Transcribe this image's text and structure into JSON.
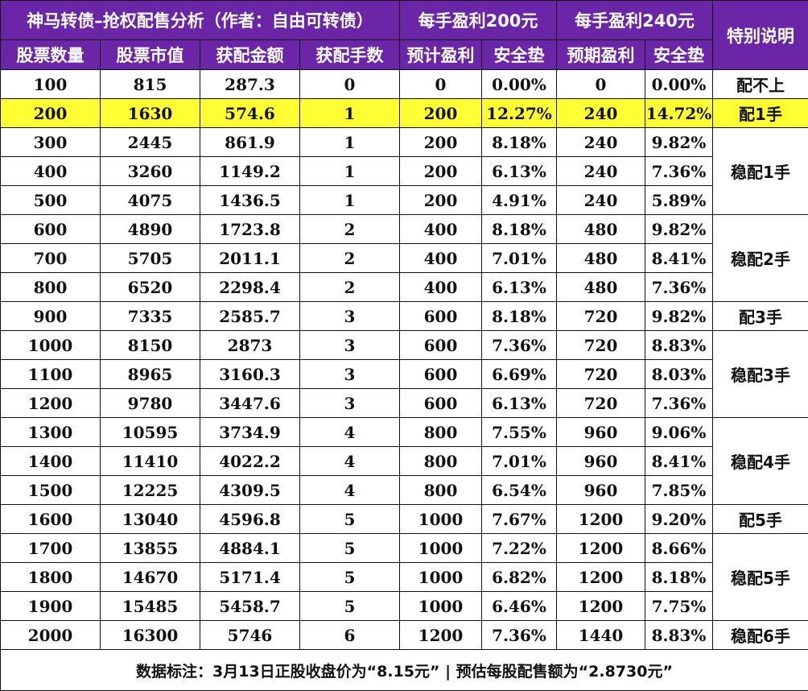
{
  "header": {
    "title": "神马转债–抢权配售分析（作者：自由可转债）",
    "group1": "每手盈利200元",
    "group2": "每手盈利240元",
    "special": "特别说明",
    "columns": [
      "股票数量",
      "股票市值",
      "获配金额",
      "获配手数",
      "预计盈利",
      "安全垫",
      "预期盈利",
      "安全垫"
    ]
  },
  "rows": [
    [
      "100",
      "815",
      "287.3",
      "0",
      "0",
      "0.00%",
      "0",
      "0.00%"
    ],
    [
      "200",
      "1630",
      "574.6",
      "1",
      "200",
      "12.27%",
      "240",
      "14.72%"
    ],
    [
      "300",
      "2445",
      "861.9",
      "1",
      "200",
      "8.18%",
      "240",
      "9.82%"
    ],
    [
      "400",
      "3260",
      "1149.2",
      "1",
      "200",
      "6.13%",
      "240",
      "7.36%"
    ],
    [
      "500",
      "4075",
      "1436.5",
      "1",
      "200",
      "4.91%",
      "240",
      "5.89%"
    ],
    [
      "600",
      "4890",
      "1723.8",
      "2",
      "400",
      "8.18%",
      "480",
      "9.82%"
    ],
    [
      "700",
      "5705",
      "2011.1",
      "2",
      "400",
      "7.01%",
      "480",
      "8.41%"
    ],
    [
      "800",
      "6520",
      "2298.4",
      "2",
      "400",
      "6.13%",
      "480",
      "7.36%"
    ],
    [
      "900",
      "7335",
      "2585.7",
      "3",
      "600",
      "8.18%",
      "720",
      "9.82%"
    ],
    [
      "1000",
      "8150",
      "2873",
      "3",
      "600",
      "7.36%",
      "720",
      "8.83%"
    ],
    [
      "1100",
      "8965",
      "3160.3",
      "3",
      "600",
      "6.69%",
      "720",
      "8.03%"
    ],
    [
      "1200",
      "9780",
      "3447.6",
      "3",
      "600",
      "6.13%",
      "720",
      "7.36%"
    ],
    [
      "1300",
      "10595",
      "3734.9",
      "4",
      "800",
      "7.55%",
      "960",
      "9.06%"
    ],
    [
      "1400",
      "11410",
      "4022.2",
      "4",
      "800",
      "7.01%",
      "960",
      "8.41%"
    ],
    [
      "1500",
      "12225",
      "4309.5",
      "4",
      "800",
      "6.54%",
      "960",
      "7.85%"
    ],
    [
      "1600",
      "13040",
      "4596.8",
      "5",
      "1000",
      "7.67%",
      "1200",
      "9.20%"
    ],
    [
      "1700",
      "13855",
      "4884.1",
      "5",
      "1000",
      "7.22%",
      "1200",
      "8.66%"
    ],
    [
      "1800",
      "14670",
      "5171.4",
      "5",
      "1000",
      "6.82%",
      "1200",
      "8.18%"
    ],
    [
      "1900",
      "15485",
      "5458.7",
      "5",
      "1000",
      "6.46%",
      "1200",
      "7.75%"
    ],
    [
      "2000",
      "16300",
      "5746",
      "6",
      "1200",
      "7.36%",
      "1440",
      "8.83%"
    ]
  ],
  "notes": {
    "n0": "配不上",
    "n1": "配1手",
    "n2": "稳配1手",
    "n5": "稳配2手",
    "n8": "配3手",
    "n9": "稳配3手",
    "n12": "稳配4手",
    "n15": "配5手",
    "n16": "稳配5手",
    "n19": "稳配6手"
  },
  "footer": "数据标注：3月13日正股收盘价为“8.15元” | 预估每股配售额为“2.8730元”",
  "colors": {
    "header_bg": "#6a26a6",
    "highlight": "#ffff33"
  }
}
